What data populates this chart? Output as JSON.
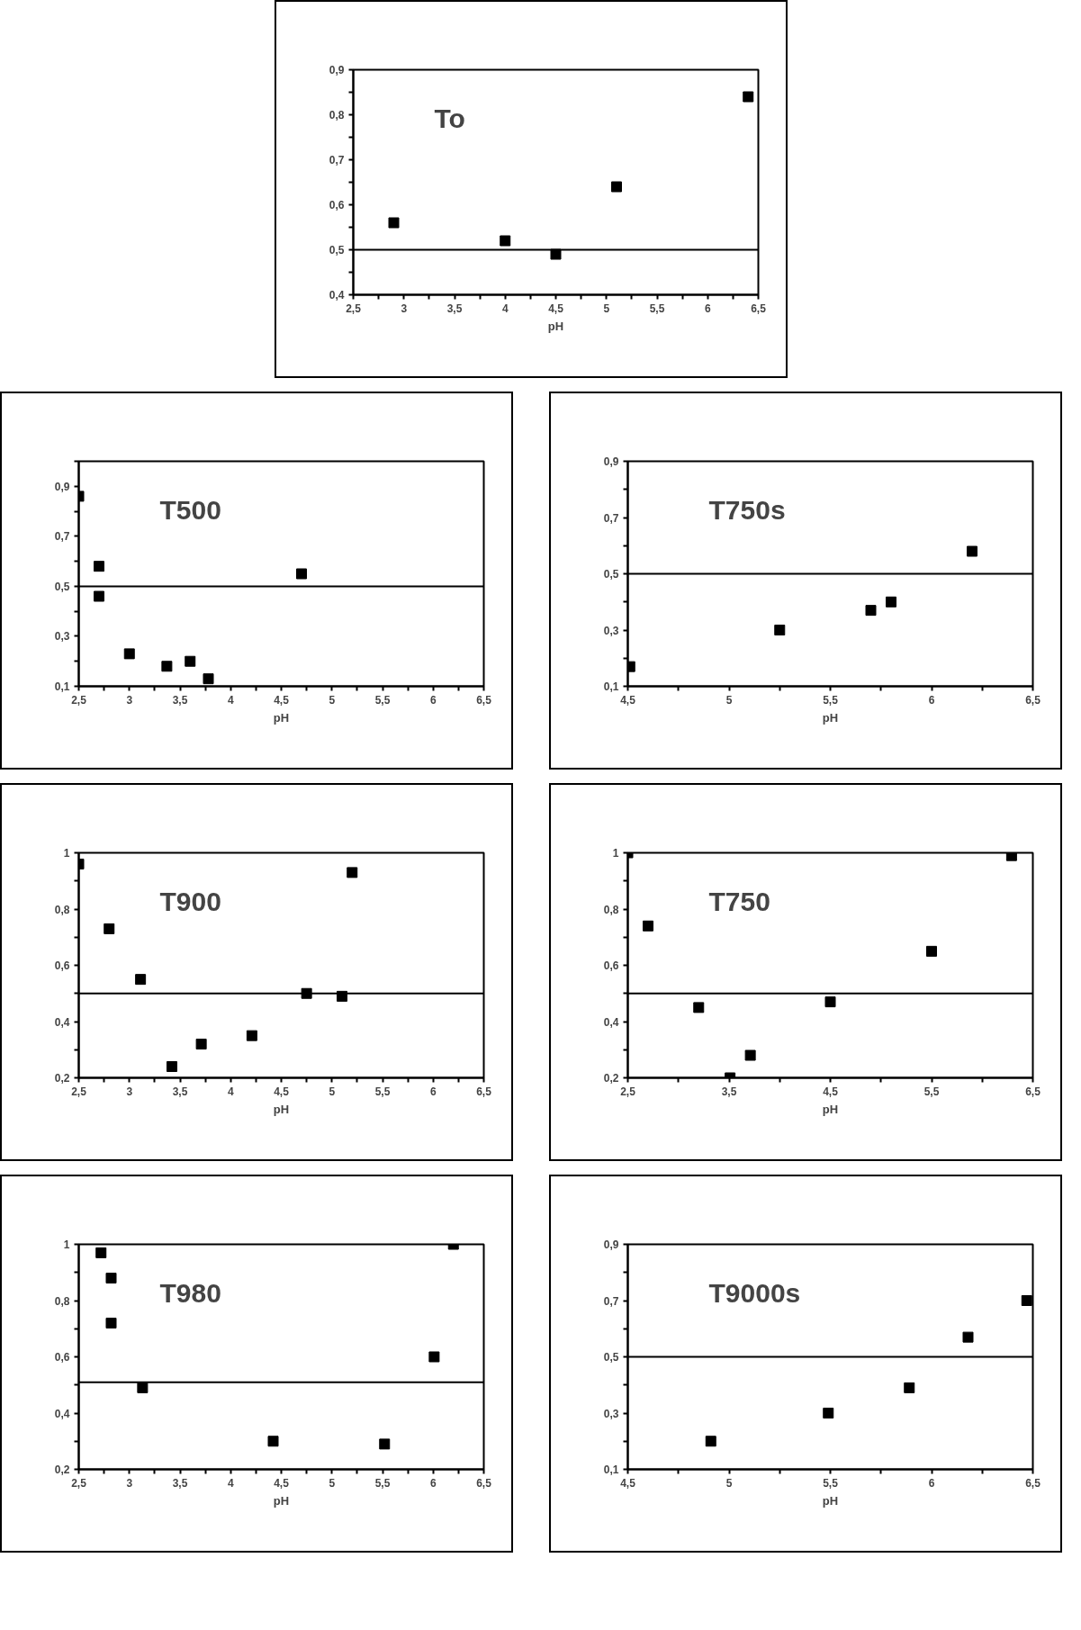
{
  "chart_data": [
    {
      "type": "scatter",
      "title": "To",
      "xlabel": "pH",
      "marker": "square",
      "color": "#000000",
      "x": [
        2.9,
        4.0,
        4.5,
        5.1,
        6.4
      ],
      "values": [
        0.56,
        0.52,
        0.49,
        0.64,
        0.84
      ],
      "xlim": [
        2.5,
        6.5
      ],
      "ylim": [
        0.4,
        0.9
      ],
      "xticks": [
        {
          "value": 2.5,
          "label": "2,5"
        },
        {
          "value": 2.75,
          "label": null
        },
        {
          "value": 3,
          "label": "3"
        },
        {
          "value": 3.25,
          "label": null
        },
        {
          "value": 3.5,
          "label": "3,5"
        },
        {
          "value": 3.75,
          "label": null
        },
        {
          "value": 4,
          "label": "4"
        },
        {
          "value": 4.25,
          "label": null
        },
        {
          "value": 4.5,
          "label": "4,5"
        },
        {
          "value": 4.75,
          "label": null
        },
        {
          "value": 5,
          "label": "5"
        },
        {
          "value": 5.25,
          "label": null
        },
        {
          "value": 5.5,
          "label": "5,5"
        },
        {
          "value": 5.75,
          "label": null
        },
        {
          "value": 6,
          "label": "6"
        },
        {
          "value": 6.25,
          "label": null
        },
        {
          "value": 6.5,
          "label": "6,5"
        }
      ],
      "yticks": [
        {
          "value": 0.4,
          "label": "0,4"
        },
        {
          "value": 0.45,
          "label": null
        },
        {
          "value": 0.5,
          "label": "0,5"
        },
        {
          "value": 0.55,
          "label": null
        },
        {
          "value": 0.6,
          "label": "0,6"
        },
        {
          "value": 0.65,
          "label": null
        },
        {
          "value": 0.7,
          "label": "0,7"
        },
        {
          "value": 0.75,
          "label": null
        },
        {
          "value": 0.8,
          "label": "0,8"
        },
        {
          "value": 0.85,
          "label": null
        },
        {
          "value": 0.9,
          "label": "0,9"
        }
      ],
      "ref_lines": [
        {
          "axis": "y",
          "value": 0.5
        }
      ]
    },
    {
      "type": "scatter",
      "title": "T500",
      "xlabel": "pH",
      "marker": "square",
      "color": "#000000",
      "x": [
        2.5,
        2.7,
        2.7,
        3.0,
        3.37,
        3.6,
        3.78,
        4.7
      ],
      "values": [
        0.86,
        0.58,
        0.46,
        0.23,
        0.18,
        0.2,
        0.13,
        0.55
      ],
      "xlim": [
        2.5,
        6.5
      ],
      "ylim": [
        0.1,
        1.0
      ],
      "xticks": [
        {
          "value": 2.5,
          "label": "2,5"
        },
        {
          "value": 2.75,
          "label": null
        },
        {
          "value": 3,
          "label": "3"
        },
        {
          "value": 3.25,
          "label": null
        },
        {
          "value": 3.5,
          "label": "3,5"
        },
        {
          "value": 3.75,
          "label": null
        },
        {
          "value": 4,
          "label": "4"
        },
        {
          "value": 4.25,
          "label": null
        },
        {
          "value": 4.5,
          "label": "4,5"
        },
        {
          "value": 4.75,
          "label": null
        },
        {
          "value": 5,
          "label": "5"
        },
        {
          "value": 5.25,
          "label": null
        },
        {
          "value": 5.5,
          "label": "5,5"
        },
        {
          "value": 5.75,
          "label": null
        },
        {
          "value": 6,
          "label": "6"
        },
        {
          "value": 6.25,
          "label": null
        },
        {
          "value": 6.5,
          "label": "6,5"
        }
      ],
      "yticks": [
        {
          "value": 0.1,
          "label": "0,1"
        },
        {
          "value": 0.2,
          "label": null
        },
        {
          "value": 0.3,
          "label": "0,3"
        },
        {
          "value": 0.4,
          "label": null
        },
        {
          "value": 0.5,
          "label": "0,5"
        },
        {
          "value": 0.6,
          "label": null
        },
        {
          "value": 0.7,
          "label": "0,7"
        },
        {
          "value": 0.8,
          "label": null
        },
        {
          "value": 0.9,
          "label": "0,9"
        },
        {
          "value": 1.0,
          "label": null
        }
      ],
      "ref_lines": [
        {
          "axis": "y",
          "value": 0.5
        }
      ]
    },
    {
      "type": "scatter",
      "title": "T750s",
      "xlabel": "pH",
      "marker": "square",
      "color": "#000000",
      "x": [
        4.51,
        5.25,
        5.7,
        5.8,
        6.2
      ],
      "values": [
        0.17,
        0.3,
        0.37,
        0.4,
        0.58
      ],
      "xlim": [
        4.5,
        6.5
      ],
      "ylim": [
        0.1,
        0.9
      ],
      "xticks": [
        {
          "value": 4.5,
          "label": "4,5"
        },
        {
          "value": 4.75,
          "label": null
        },
        {
          "value": 5,
          "label": "5"
        },
        {
          "value": 5.25,
          "label": null
        },
        {
          "value": 5.5,
          "label": "5,5"
        },
        {
          "value": 5.75,
          "label": null
        },
        {
          "value": 6,
          "label": "6"
        },
        {
          "value": 6.25,
          "label": null
        },
        {
          "value": 6.5,
          "label": "6,5"
        }
      ],
      "yticks": [
        {
          "value": 0.1,
          "label": "0,1"
        },
        {
          "value": 0.2,
          "label": null
        },
        {
          "value": 0.3,
          "label": "0,3"
        },
        {
          "value": 0.4,
          "label": null
        },
        {
          "value": 0.5,
          "label": "0,5"
        },
        {
          "value": 0.6,
          "label": null
        },
        {
          "value": 0.7,
          "label": "0,7"
        },
        {
          "value": 0.8,
          "label": null
        },
        {
          "value": 0.9,
          "label": "0,9"
        }
      ],
      "ref_lines": [
        {
          "axis": "y",
          "value": 0.5
        }
      ]
    },
    {
      "type": "scatter",
      "title": "T900",
      "xlabel": "pH",
      "marker": "square",
      "color": "#000000",
      "x": [
        2.5,
        2.8,
        3.11,
        3.42,
        3.71,
        4.21,
        4.75,
        5.1,
        5.2
      ],
      "values": [
        0.96,
        0.73,
        0.55,
        0.24,
        0.32,
        0.35,
        0.5,
        0.49,
        0.93
      ],
      "xlim": [
        2.5,
        6.5
      ],
      "ylim": [
        0.2,
        1.0
      ],
      "xticks": [
        {
          "value": 2.5,
          "label": "2,5"
        },
        {
          "value": 2.75,
          "label": null
        },
        {
          "value": 3,
          "label": "3"
        },
        {
          "value": 3.25,
          "label": null
        },
        {
          "value": 3.5,
          "label": "3,5"
        },
        {
          "value": 3.75,
          "label": null
        },
        {
          "value": 4,
          "label": "4"
        },
        {
          "value": 4.25,
          "label": null
        },
        {
          "value": 4.5,
          "label": "4,5"
        },
        {
          "value": 4.75,
          "label": null
        },
        {
          "value": 5,
          "label": "5"
        },
        {
          "value": 5.25,
          "label": null
        },
        {
          "value": 5.5,
          "label": "5,5"
        },
        {
          "value": 5.75,
          "label": null
        },
        {
          "value": 6,
          "label": "6"
        },
        {
          "value": 6.25,
          "label": null
        },
        {
          "value": 6.5,
          "label": "6,5"
        }
      ],
      "yticks": [
        {
          "value": 0.2,
          "label": "0,2"
        },
        {
          "value": 0.3,
          "label": null
        },
        {
          "value": 0.4,
          "label": "0,4"
        },
        {
          "value": 0.5,
          "label": null
        },
        {
          "value": 0.6,
          "label": "0,6"
        },
        {
          "value": 0.7,
          "label": null
        },
        {
          "value": 0.8,
          "label": "0,8"
        },
        {
          "value": 0.9,
          "label": null
        },
        {
          "value": 1.0,
          "label": "1"
        }
      ],
      "ref_lines": [
        {
          "axis": "y",
          "value": 0.5
        }
      ]
    },
    {
      "type": "scatter",
      "title": "T750",
      "xlabel": "pH",
      "marker": "square",
      "color": "#000000",
      "x": [
        2.5,
        2.7,
        3.2,
        3.51,
        3.71,
        4.5,
        5.5,
        6.29
      ],
      "values": [
        1.0,
        0.74,
        0.45,
        0.2,
        0.28,
        0.47,
        0.65,
        0.99
      ],
      "xlim": [
        2.5,
        6.5
      ],
      "ylim": [
        0.2,
        1.0
      ],
      "xticks": [
        {
          "value": 2.5,
          "label": "2,5"
        },
        {
          "value": 3,
          "label": null
        },
        {
          "value": 3.5,
          "label": "3,5"
        },
        {
          "value": 4,
          "label": null
        },
        {
          "value": 4.5,
          "label": "4,5"
        },
        {
          "value": 5,
          "label": null
        },
        {
          "value": 5.5,
          "label": "5,5"
        },
        {
          "value": 6,
          "label": null
        },
        {
          "value": 6.5,
          "label": "6,5"
        }
      ],
      "yticks": [
        {
          "value": 0.2,
          "label": "0,2"
        },
        {
          "value": 0.3,
          "label": null
        },
        {
          "value": 0.4,
          "label": "0,4"
        },
        {
          "value": 0.5,
          "label": null
        },
        {
          "value": 0.6,
          "label": "0,6"
        },
        {
          "value": 0.7,
          "label": null
        },
        {
          "value": 0.8,
          "label": "0,8"
        },
        {
          "value": 0.9,
          "label": null
        },
        {
          "value": 1.0,
          "label": "1"
        }
      ],
      "ref_lines": [
        {
          "axis": "y",
          "value": 0.5
        }
      ]
    },
    {
      "type": "scatter",
      "title": "T980",
      "xlabel": "pH",
      "marker": "square",
      "color": "#000000",
      "x": [
        2.72,
        2.82,
        2.82,
        3.13,
        4.42,
        5.52,
        6.01,
        6.2
      ],
      "values": [
        0.97,
        0.88,
        0.72,
        0.49,
        0.3,
        0.29,
        0.6,
        1.0
      ],
      "xlim": [
        2.5,
        6.5
      ],
      "ylim": [
        0.2,
        1.0
      ],
      "xticks": [
        {
          "value": 2.5,
          "label": "2,5"
        },
        {
          "value": 2.75,
          "label": null
        },
        {
          "value": 3,
          "label": "3"
        },
        {
          "value": 3.25,
          "label": null
        },
        {
          "value": 3.5,
          "label": "3,5"
        },
        {
          "value": 3.75,
          "label": null
        },
        {
          "value": 4,
          "label": "4"
        },
        {
          "value": 4.25,
          "label": null
        },
        {
          "value": 4.5,
          "label": "4,5"
        },
        {
          "value": 4.75,
          "label": null
        },
        {
          "value": 5,
          "label": "5"
        },
        {
          "value": 5.25,
          "label": null
        },
        {
          "value": 5.5,
          "label": "5,5"
        },
        {
          "value": 5.75,
          "label": null
        },
        {
          "value": 6,
          "label": "6"
        },
        {
          "value": 6.25,
          "label": null
        },
        {
          "value": 6.5,
          "label": "6,5"
        }
      ],
      "yticks": [
        {
          "value": 0.2,
          "label": "0,2"
        },
        {
          "value": 0.3,
          "label": null
        },
        {
          "value": 0.4,
          "label": "0,4"
        },
        {
          "value": 0.5,
          "label": null
        },
        {
          "value": 0.6,
          "label": "0,6"
        },
        {
          "value": 0.7,
          "label": null
        },
        {
          "value": 0.8,
          "label": "0,8"
        },
        {
          "value": 0.9,
          "label": null
        },
        {
          "value": 1.0,
          "label": "1"
        }
      ],
      "ref_lines": [
        {
          "axis": "y",
          "value": 0.51
        }
      ]
    },
    {
      "type": "scatter",
      "title": "T9000s",
      "xlabel": "pH",
      "marker": "square",
      "color": "#000000",
      "x": [
        4.91,
        5.49,
        5.89,
        6.18,
        6.47
      ],
      "values": [
        0.2,
        0.3,
        0.39,
        0.57,
        0.7
      ],
      "xlim": [
        4.5,
        6.5
      ],
      "ylim": [
        0.1,
        0.9
      ],
      "xticks": [
        {
          "value": 4.5,
          "label": "4,5"
        },
        {
          "value": 4.75,
          "label": null
        },
        {
          "value": 5,
          "label": "5"
        },
        {
          "value": 5.25,
          "label": null
        },
        {
          "value": 5.5,
          "label": "5,5"
        },
        {
          "value": 5.75,
          "label": null
        },
        {
          "value": 6,
          "label": "6"
        },
        {
          "value": 6.25,
          "label": null
        },
        {
          "value": 6.5,
          "label": "6,5"
        }
      ],
      "yticks": [
        {
          "value": 0.1,
          "label": "0,1"
        },
        {
          "value": 0.2,
          "label": null
        },
        {
          "value": 0.3,
          "label": "0,3"
        },
        {
          "value": 0.4,
          "label": null
        },
        {
          "value": 0.5,
          "label": "0,5"
        },
        {
          "value": 0.6,
          "label": null
        },
        {
          "value": 0.7,
          "label": "0,7"
        },
        {
          "value": 0.8,
          "label": null
        },
        {
          "value": 0.9,
          "label": "0,9"
        }
      ],
      "ref_lines": [
        {
          "axis": "y",
          "value": 0.5
        }
      ]
    }
  ]
}
